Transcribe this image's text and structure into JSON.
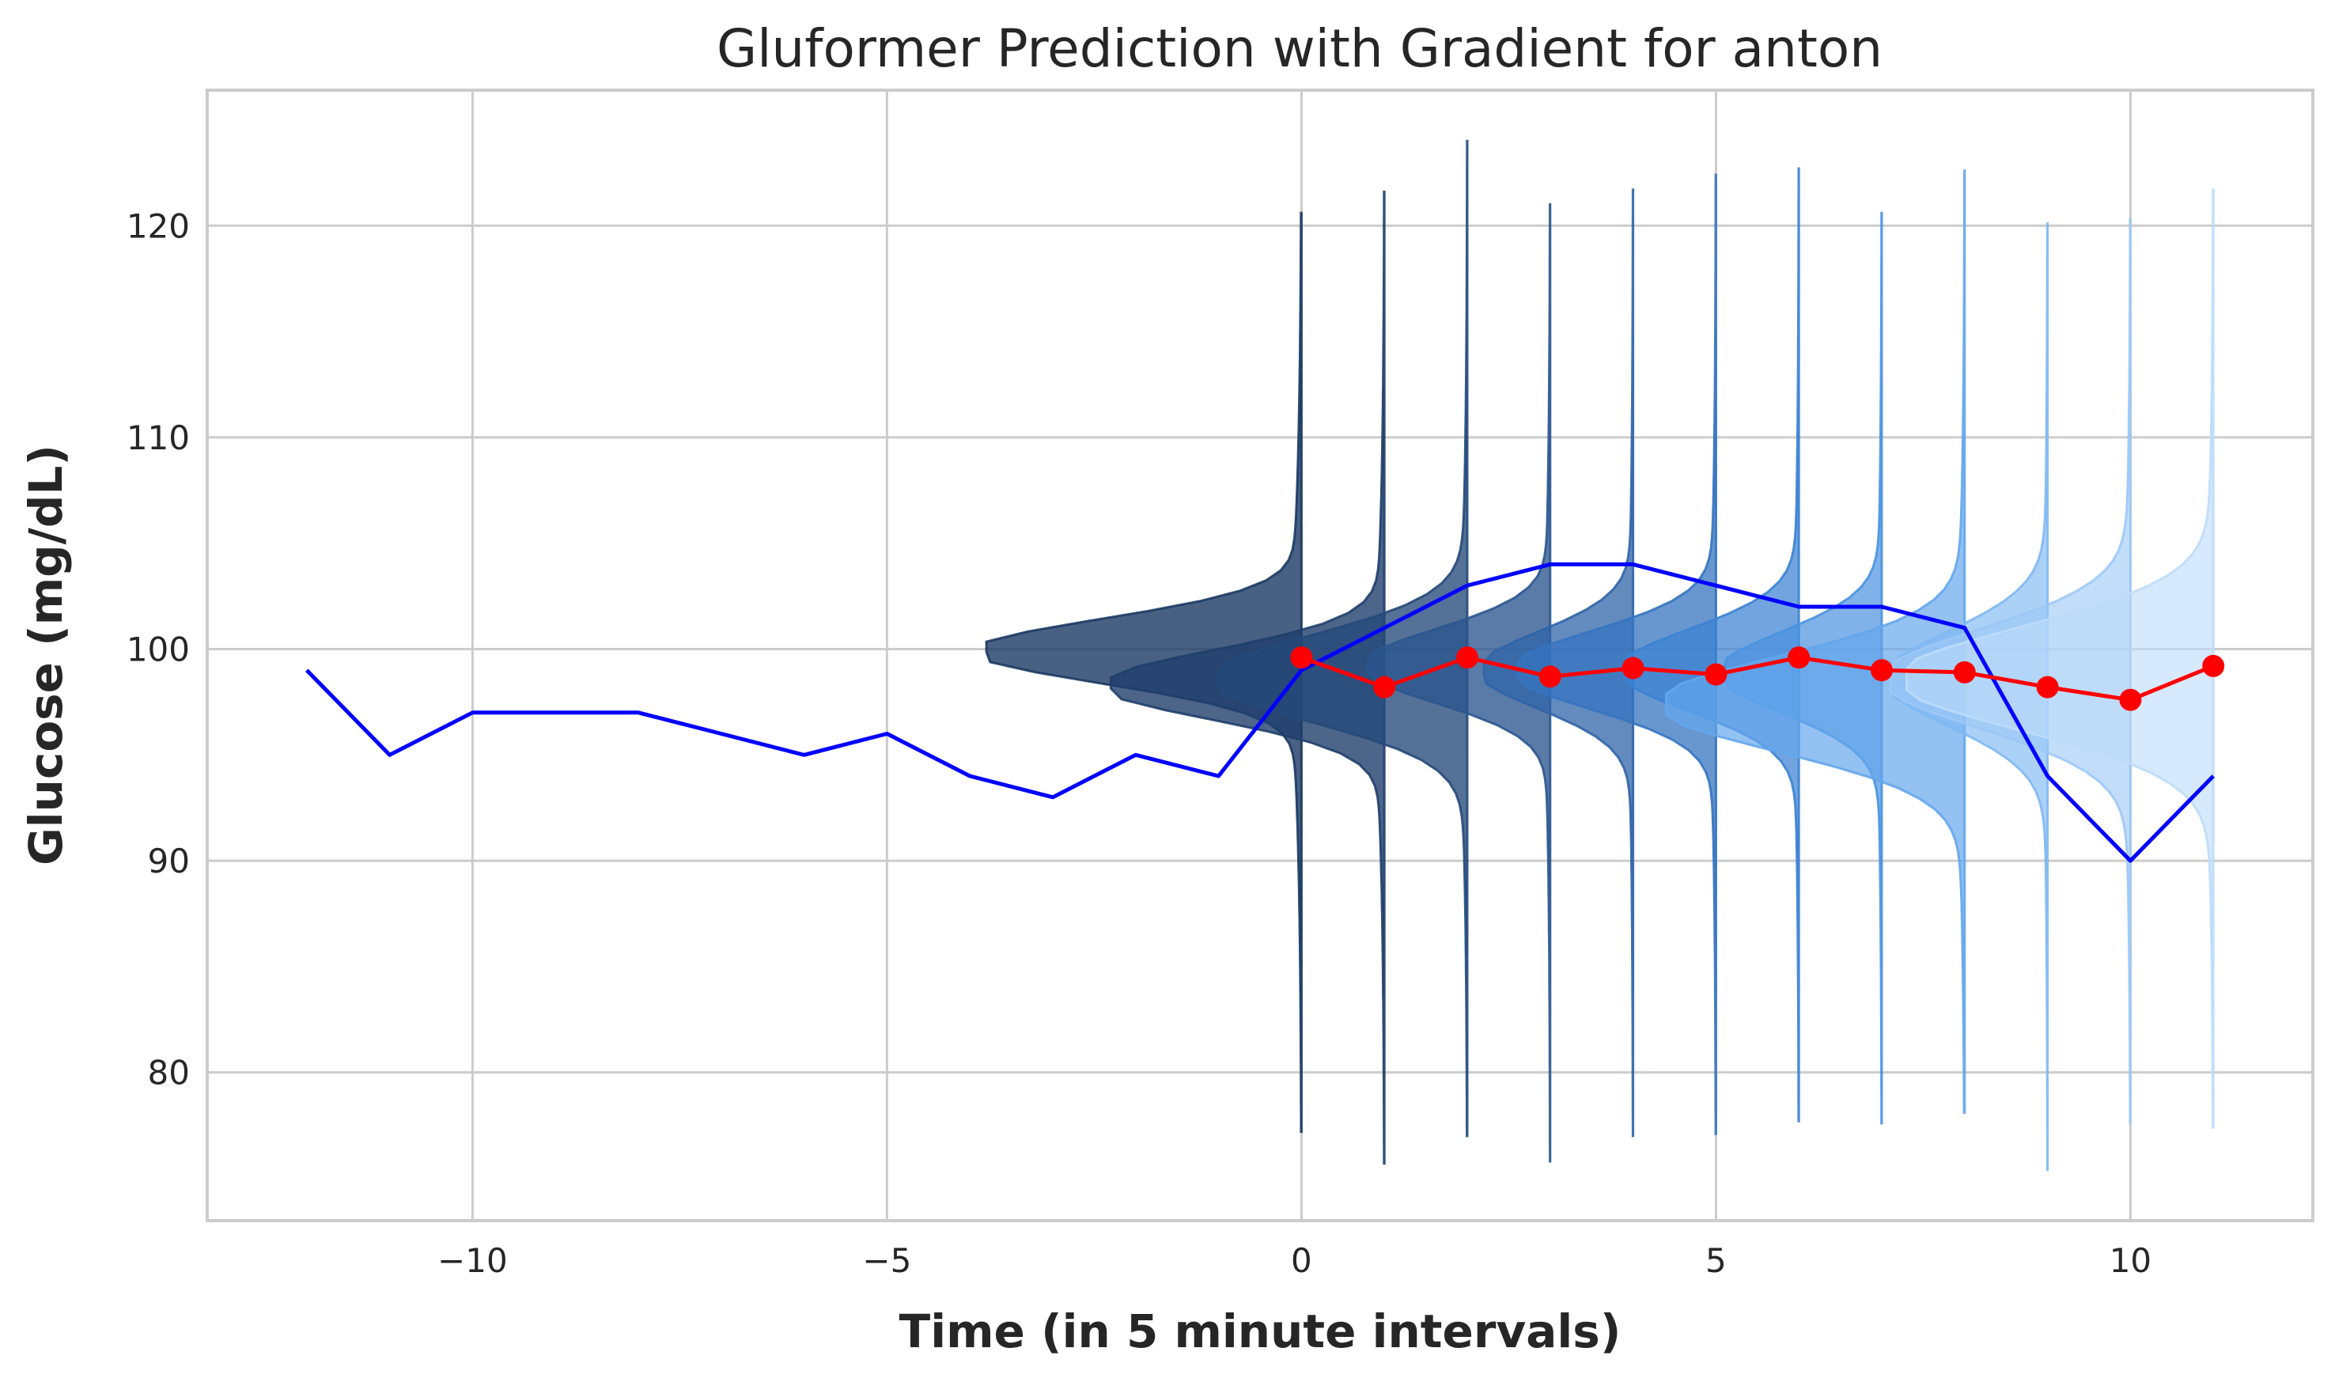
{
  "chart_data": {
    "type": "line",
    "title": "Gluformer Prediction with Gradient for anton",
    "xlabel": "Time (in 5 minute intervals)",
    "ylabel": "Glucose (mg/dL)",
    "xlim": [
      -13.2,
      12.2
    ],
    "ylim": [
      73.0,
      126.4
    ],
    "grid": true,
    "xticks": [
      -10,
      -5,
      0,
      5,
      10
    ],
    "xtick_labels": [
      "−10",
      "−5",
      "0",
      "5",
      "10"
    ],
    "yticks": [
      80,
      90,
      100,
      110,
      120
    ],
    "ytick_labels": [
      "80",
      "90",
      "100",
      "110",
      "120"
    ],
    "series": [
      {
        "color": "#0000ff",
        "x": [
          -12,
          -11,
          -10,
          -9,
          -8,
          -7,
          -6,
          -5,
          -4,
          -3,
          -2,
          -1,
          0,
          1,
          2,
          3,
          4,
          5,
          6,
          7,
          8,
          9,
          10,
          11
        ],
        "y": [
          99,
          95,
          97,
          97,
          97,
          96,
          95,
          96,
          94,
          93,
          95,
          94,
          99,
          101,
          103,
          104,
          104,
          103,
          102,
          102,
          101,
          94,
          90,
          94
        ]
      },
      {
        "color": "#ff0000",
        "marker": "circle",
        "x": [
          0,
          1,
          2,
          3,
          4,
          5,
          6,
          7,
          8,
          9,
          10,
          11
        ],
        "y": [
          99.6,
          98.2,
          99.6,
          98.7,
          99.1,
          98.8,
          99.6,
          99.0,
          98.9,
          98.2,
          97.6,
          99.2
        ]
      }
    ],
    "distributions": [
      {
        "x": 0,
        "min": 77.2,
        "max": 120.6,
        "mode": 99.9,
        "sd": 1.5,
        "reach": 3.8,
        "color": "#1a3a63",
        "opacity": 0.8
      },
      {
        "x": 1,
        "min": 75.7,
        "max": 121.6,
        "mode": 98.3,
        "sd": 1.6,
        "reach": 3.3,
        "color": "#1f3f6b",
        "opacity": 0.8
      },
      {
        "x": 2,
        "min": 77.0,
        "max": 124.0,
        "mode": 98.6,
        "sd": 2.0,
        "reach": 3.0,
        "color": "#25497a",
        "opacity": 0.78
      },
      {
        "x": 3,
        "min": 75.8,
        "max": 121.0,
        "mode": 99.2,
        "sd": 1.7,
        "reach": 2.2,
        "color": "#2b5690",
        "opacity": 0.78
      },
      {
        "x": 4,
        "min": 77.0,
        "max": 121.7,
        "mode": 99.0,
        "sd": 1.8,
        "reach": 1.8,
        "color": "#3064a8",
        "opacity": 0.75
      },
      {
        "x": 5,
        "min": 77.1,
        "max": 122.4,
        "mode": 99.0,
        "sd": 1.8,
        "reach": 2.4,
        "color": "#3574c0",
        "opacity": 0.75
      },
      {
        "x": 6,
        "min": 77.7,
        "max": 122.7,
        "mode": 99.0,
        "sd": 1.9,
        "reach": 2.1,
        "color": "#3b82d4",
        "opacity": 0.72
      },
      {
        "x": 7,
        "min": 77.6,
        "max": 120.6,
        "mode": 98.9,
        "sd": 1.9,
        "reach": 1.9,
        "color": "#4a92e0",
        "opacity": 0.7
      },
      {
        "x": 8,
        "min": 78.1,
        "max": 122.6,
        "mode": 97.4,
        "sd": 2.2,
        "reach": 3.6,
        "color": "#64a6ec",
        "opacity": 0.7
      },
      {
        "x": 9,
        "min": 75.4,
        "max": 120.1,
        "mode": 98.6,
        "sd": 2.2,
        "reach": 1.9,
        "color": "#80b8f2",
        "opacity": 0.65
      },
      {
        "x": 10,
        "min": 77.6,
        "max": 120.3,
        "mode": 98.6,
        "sd": 2.3,
        "reach": 2.9,
        "color": "#9cc8f6",
        "opacity": 0.62
      },
      {
        "x": 11,
        "min": 77.4,
        "max": 121.7,
        "mode": 98.6,
        "sd": 2.4,
        "reach": 3.7,
        "color": "#bcdbfa",
        "opacity": 0.6
      }
    ]
  }
}
